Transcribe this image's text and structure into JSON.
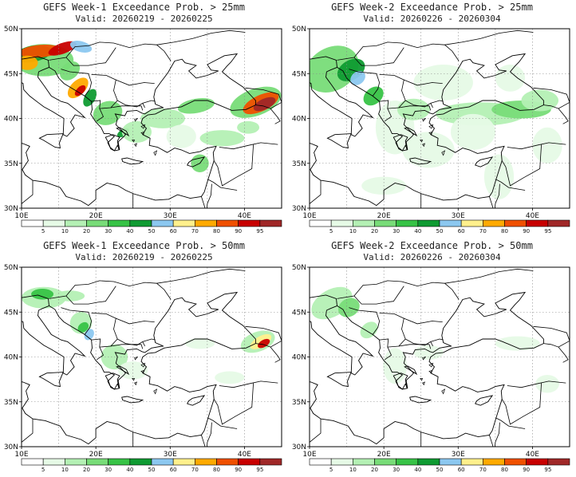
{
  "colorbar": {
    "colors": [
      "#ffffff",
      "#e6fae6",
      "#b4f0b4",
      "#78dc78",
      "#37c346",
      "#0f9b32",
      "#8cc8f0",
      "#fff08c",
      "#ffaa00",
      "#f05000",
      "#c80000",
      "#a02828"
    ],
    "labels": [
      "5",
      "10",
      "20",
      "30",
      "40",
      "50",
      "60",
      "70",
      "80",
      "90",
      "95"
    ]
  },
  "axes": {
    "lat_labels": [
      "50N",
      "45N",
      "40N",
      "35N",
      "30N"
    ],
    "lon_labels": [
      "10E",
      "20E",
      "30E",
      "40E"
    ]
  },
  "panels": [
    {
      "title": "GEFS Week-1 Exceedance Prob. > 25mm",
      "valid": "Valid: 20260219 - 20260225"
    },
    {
      "title": "GEFS Week-2 Exceedance Prob. > 25mm",
      "valid": "Valid: 20260226 - 20260304"
    },
    {
      "title": "GEFS Week-1 Exceedance Prob. > 50mm",
      "valid": "Valid: 20260219 - 20260225"
    },
    {
      "title": "GEFS Week-2 Exceedance Prob. > 50mm",
      "valid": "Valid: 20260226 - 20260304"
    }
  ]
}
